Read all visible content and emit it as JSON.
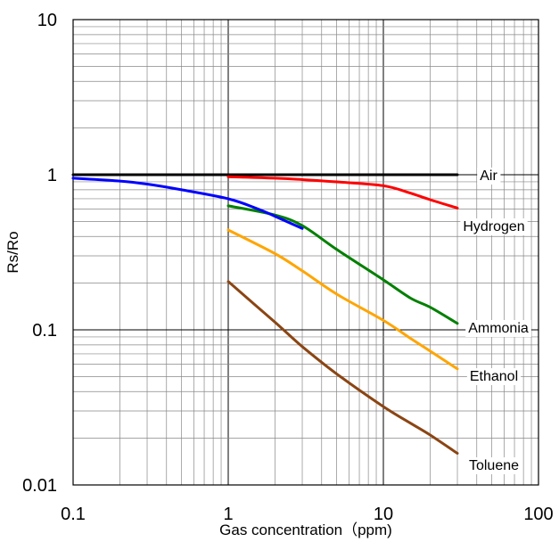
{
  "chart_data": {
    "type": "line",
    "xlabel": "Gas concentration（ppm)",
    "ylabel": "Rs/Ro",
    "x_scale": "log",
    "y_scale": "log",
    "xlim": [
      0.1,
      100
    ],
    "ylim": [
      0.01,
      10
    ],
    "x_ticks": [
      "0.1",
      "1",
      "10",
      "100"
    ],
    "y_ticks": [
      "10",
      "1",
      "0.1",
      "0.01"
    ],
    "grid": true,
    "series": [
      {
        "name": "Air",
        "color": "#000000",
        "x": [
          0.1,
          30
        ],
        "y": [
          1.0,
          1.0
        ]
      },
      {
        "name": "Hydrogen",
        "color": "#ff0000",
        "x": [
          1,
          2,
          3,
          5,
          10,
          15,
          20,
          30
        ],
        "y": [
          0.97,
          0.95,
          0.93,
          0.9,
          0.85,
          0.76,
          0.69,
          0.61
        ]
      },
      {
        "name": "Ammonia",
        "color": "#008000",
        "x": [
          1,
          2,
          3,
          5,
          10,
          15,
          20,
          30
        ],
        "y": [
          0.63,
          0.55,
          0.47,
          0.33,
          0.21,
          0.16,
          0.14,
          0.11
        ]
      },
      {
        "name": "Ethanol",
        "color": "#ffa500",
        "x": [
          1,
          2,
          3,
          5,
          10,
          15,
          20,
          30
        ],
        "y": [
          0.44,
          0.31,
          0.24,
          0.17,
          0.115,
          0.088,
          0.073,
          0.056
        ]
      },
      {
        "name": "Toluene",
        "color": "#8b4513",
        "x": [
          1,
          2,
          3,
          5,
          10,
          15,
          20,
          30
        ],
        "y": [
          0.205,
          0.112,
          0.078,
          0.052,
          0.032,
          0.025,
          0.021,
          0.016
        ]
      },
      {
        "name": "",
        "color": "#0000ff",
        "x": [
          0.1,
          0.2,
          0.3,
          0.5,
          1,
          1.5,
          2,
          3
        ],
        "y": [
          0.95,
          0.91,
          0.87,
          0.8,
          0.7,
          0.61,
          0.54,
          0.45
        ]
      }
    ],
    "series_label_order": [
      "Air",
      "Hydrogen",
      "Ammonia",
      "Ethanol",
      "Toluene"
    ]
  }
}
